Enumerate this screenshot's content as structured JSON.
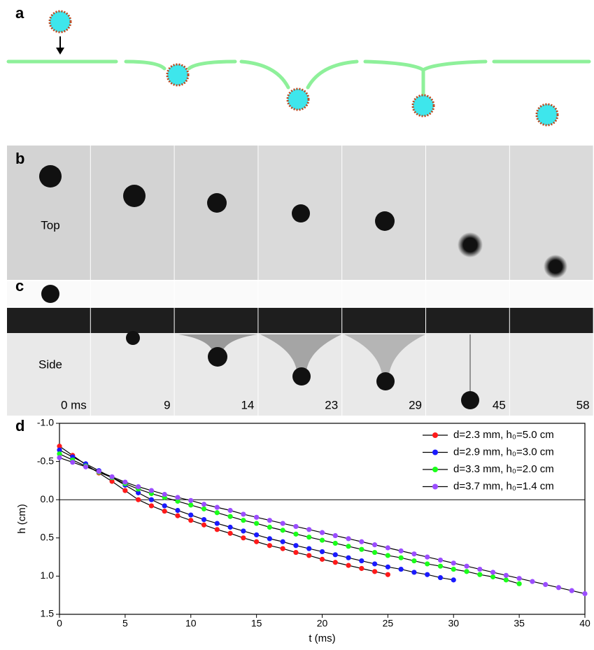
{
  "panel_labels": [
    "a",
    "b",
    "c",
    "d"
  ],
  "image_strip": {
    "top_label": "Top",
    "side_label": "Side",
    "times": [
      "0 ms",
      "9",
      "14",
      "23",
      "29",
      "45",
      "58"
    ]
  },
  "chart_data": {
    "type": "line",
    "xlabel": "t (ms)",
    "ylabel": "h (cm)",
    "xlim": [
      0,
      40
    ],
    "xticks": [
      0,
      5,
      10,
      15,
      20,
      25,
      30,
      35,
      40
    ],
    "ylim": [
      -1.0,
      1.5
    ],
    "y_inverted": true,
    "yticks": [
      {
        "value": -1.0,
        "label": "-1.0"
      },
      {
        "value": -0.5,
        "label": "-0.5"
      },
      {
        "value": 0,
        "label": "0.0"
      },
      {
        "value": 0.5,
        "label": "0.5"
      },
      {
        "value": 1.0,
        "label": "1.0"
      },
      {
        "value": 1.5,
        "label": "1.5"
      }
    ],
    "reference_line": 0,
    "line_color": "#000000",
    "legend": "upper right",
    "series": [
      {
        "name": "d=2.3 mm, h₀=5.0 cm",
        "color": "#ff1a1a",
        "x": [
          0,
          1,
          2,
          3,
          4,
          5,
          6,
          7,
          8,
          9,
          10,
          11,
          12,
          13,
          14,
          15,
          16,
          17,
          18,
          19,
          20,
          21,
          22,
          23,
          24,
          25
        ],
        "values": [
          -0.7,
          -0.58,
          -0.46,
          -0.35,
          -0.24,
          -0.12,
          0.0,
          0.08,
          0.15,
          0.21,
          0.27,
          0.33,
          0.39,
          0.44,
          0.5,
          0.55,
          0.6,
          0.64,
          0.69,
          0.73,
          0.78,
          0.82,
          0.86,
          0.9,
          0.94,
          0.98
        ]
      },
      {
        "name": "d=2.9 mm, h₀=3.0 cm",
        "color": "#1a1aff",
        "x": [
          0,
          1,
          2,
          3,
          4,
          5,
          6,
          7,
          8,
          9,
          10,
          11,
          12,
          13,
          14,
          15,
          16,
          17,
          18,
          19,
          20,
          21,
          22,
          23,
          24,
          25,
          26,
          27,
          28,
          29,
          30
        ],
        "values": [
          -0.65,
          -0.56,
          -0.47,
          -0.38,
          -0.29,
          -0.19,
          -0.09,
          0.0,
          0.08,
          0.14,
          0.2,
          0.26,
          0.31,
          0.36,
          0.41,
          0.46,
          0.51,
          0.55,
          0.6,
          0.64,
          0.68,
          0.72,
          0.76,
          0.8,
          0.84,
          0.88,
          0.91,
          0.95,
          0.98,
          1.02,
          1.05
        ]
      },
      {
        "name": "d=3.3 mm, h₀=2.0 cm",
        "color": "#1aff1a",
        "x": [
          0,
          1,
          2,
          3,
          4,
          5,
          6,
          7,
          8,
          9,
          10,
          11,
          12,
          13,
          14,
          15,
          16,
          17,
          18,
          19,
          20,
          21,
          22,
          23,
          24,
          25,
          26,
          27,
          28,
          29,
          30,
          31,
          32,
          33,
          34,
          35
        ],
        "values": [
          -0.6,
          -0.52,
          -0.44,
          -0.36,
          -0.29,
          -0.21,
          -0.14,
          -0.08,
          -0.03,
          0.02,
          0.07,
          0.12,
          0.17,
          0.22,
          0.27,
          0.31,
          0.36,
          0.4,
          0.45,
          0.49,
          0.53,
          0.57,
          0.61,
          0.65,
          0.69,
          0.73,
          0.76,
          0.8,
          0.84,
          0.87,
          0.91,
          0.94,
          0.98,
          1.01,
          1.05,
          1.1
        ]
      },
      {
        "name": "d=3.7 mm, h₀=1.4 cm",
        "color": "#9b4dff",
        "x": [
          0,
          1,
          2,
          3,
          4,
          5,
          6,
          7,
          8,
          9,
          10,
          11,
          12,
          13,
          14,
          15,
          16,
          17,
          18,
          19,
          20,
          21,
          22,
          23,
          24,
          25,
          26,
          27,
          28,
          29,
          30,
          31,
          32,
          33,
          34,
          35,
          36,
          37,
          38,
          39,
          40
        ],
        "values": [
          -0.55,
          -0.49,
          -0.43,
          -0.37,
          -0.3,
          -0.23,
          -0.17,
          -0.12,
          -0.07,
          -0.03,
          0.01,
          0.06,
          0.1,
          0.14,
          0.19,
          0.23,
          0.27,
          0.31,
          0.35,
          0.39,
          0.43,
          0.47,
          0.51,
          0.55,
          0.59,
          0.63,
          0.67,
          0.71,
          0.75,
          0.79,
          0.83,
          0.87,
          0.91,
          0.95,
          0.99,
          1.03,
          1.07,
          1.11,
          1.15,
          1.19,
          1.23
        ]
      }
    ]
  }
}
